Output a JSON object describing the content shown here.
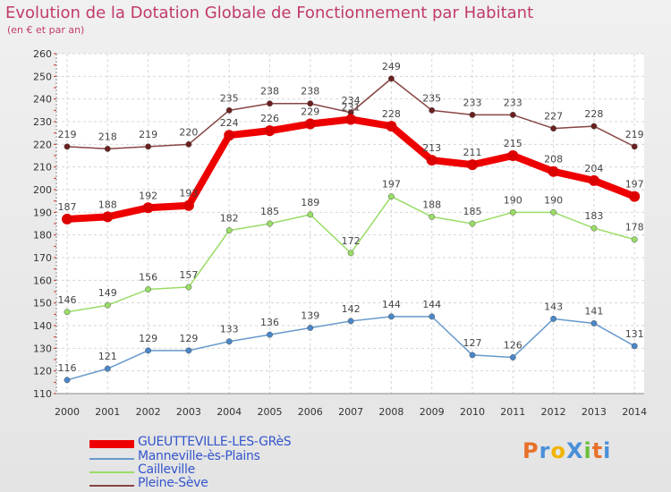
{
  "header": {
    "title": "Evolution de la Dotation Globale de Fonctionnement par Habitant",
    "subtitle": "(en € et par an)"
  },
  "logo": {
    "text": "ProXiti",
    "letters": [
      "P",
      "r",
      "o",
      "X",
      "i",
      "t",
      "i"
    ],
    "colors": [
      "#e8702a",
      "#4a90d9",
      "#f0b400",
      "#4a90d9",
      "#6cbf3a",
      "#e8702a",
      "#4a90d9"
    ]
  },
  "chart_data": {
    "type": "line",
    "x": [
      "2000",
      "2001",
      "2002",
      "2003",
      "2004",
      "2005",
      "2006",
      "2007",
      "2008",
      "2009",
      "2010",
      "2011",
      "2012",
      "2013",
      "2014"
    ],
    "ylim": [
      110,
      260
    ],
    "yticks": [
      110,
      120,
      130,
      140,
      150,
      160,
      170,
      180,
      190,
      200,
      210,
      220,
      230,
      240,
      250,
      260
    ],
    "grid": true,
    "legend_position": "bottom-left",
    "series": [
      {
        "name": "GUEUTTEVILLE-LES-GRèS",
        "color": "#ee0000",
        "width": 8,
        "point_color": "#dd0000",
        "values": [
          187,
          188,
          192,
          193,
          224,
          226,
          229,
          231,
          228,
          213,
          211,
          215,
          208,
          204,
          197
        ],
        "labels": [
          "187",
          "188",
          "192",
          "193",
          "224",
          "226",
          "229",
          "231",
          "228",
          "213",
          "211",
          "215",
          "208",
          "204",
          "197"
        ]
      },
      {
        "name": "Manneville-ès-Plains",
        "color": "#6699cc",
        "width": 1.5,
        "point_color": "#4a86c8",
        "values": [
          116,
          121,
          129,
          129,
          133,
          136,
          139,
          142,
          144,
          144,
          127,
          126,
          143,
          141,
          131
        ],
        "labels": [
          "116",
          "121",
          "129",
          "129",
          "133",
          "136",
          "139",
          "142",
          "144",
          "144",
          "127",
          "126",
          "143",
          "141",
          "131"
        ]
      },
      {
        "name": "Cailleville",
        "color": "#99dd66",
        "width": 1.5,
        "point_color": "#99dd66",
        "values": [
          146,
          149,
          156,
          157,
          182,
          185,
          189,
          172,
          197,
          188,
          185,
          190,
          190,
          183,
          178
        ],
        "labels": [
          "146",
          "149",
          "156",
          "157",
          "182",
          "185",
          "189",
          "172",
          "197",
          "188",
          "185",
          "190",
          "190",
          "183",
          "178"
        ]
      },
      {
        "name": "Pleine-Sève",
        "color": "#884444",
        "width": 1.5,
        "point_color": "#6b2020",
        "values": [
          219,
          218,
          219,
          220,
          235,
          238,
          238,
          234,
          249,
          235,
          233,
          233,
          227,
          228,
          219
        ],
        "labels": [
          "219",
          "218",
          "219",
          "220",
          "235",
          "238",
          "238",
          "234",
          "249",
          "235",
          "233",
          "233",
          "227",
          "228",
          "219"
        ]
      }
    ]
  }
}
